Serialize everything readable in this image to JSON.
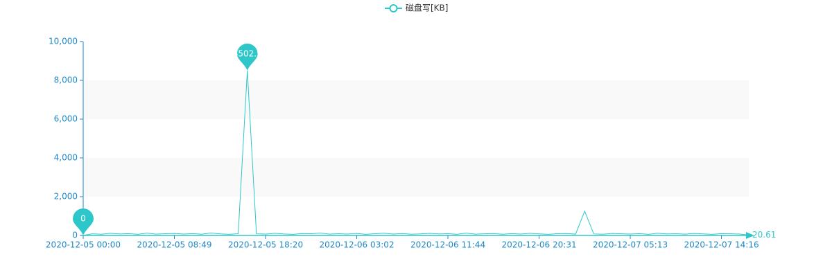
{
  "chart_data": {
    "type": "line",
    "legend": "磁盘写[KB]",
    "color": "#2ec7c9",
    "categories": [
      "2020-12-05 00:00",
      null,
      null,
      null,
      null,
      null,
      null,
      null,
      null,
      null,
      "2020-12-05 08:49",
      null,
      null,
      null,
      null,
      null,
      null,
      null,
      null,
      null,
      "2020-12-05 18:20",
      null,
      null,
      null,
      null,
      null,
      null,
      null,
      null,
      null,
      "2020-12-06 03:02",
      null,
      null,
      null,
      null,
      null,
      null,
      null,
      null,
      null,
      "2020-12-06 11:44",
      null,
      null,
      null,
      null,
      null,
      null,
      null,
      null,
      null,
      "2020-12-06 20:31",
      null,
      null,
      null,
      null,
      null,
      null,
      null,
      null,
      null,
      "2020-12-07 05:13",
      null,
      null,
      null,
      null,
      null,
      null,
      null,
      null,
      null,
      "2020-12-07 14:16",
      null,
      null,
      null
    ],
    "values": [
      0,
      85,
      62,
      110,
      74,
      93,
      58,
      120,
      67,
      88,
      102,
      71,
      95,
      64,
      130,
      79,
      56,
      91,
      8502.5,
      84,
      69,
      112,
      77,
      60,
      98,
      83,
      125,
      66,
      90,
      73,
      104,
      58,
      87,
      115,
      70,
      96,
      62,
      81,
      108,
      75,
      92,
      57,
      119,
      68,
      86,
      100,
      63,
      94,
      72,
      110,
      80,
      59,
      88,
      97,
      65,
      1250,
      78,
      61,
      103,
      85,
      70,
      92,
      58,
      116,
      74,
      89,
      66,
      101,
      79,
      60,
      95,
      83,
      71,
      20.61
    ],
    "ylim": [
      0,
      10000
    ],
    "yticks": [
      0,
      {
        "value": 2000,
        "label": "2,000"
      },
      {
        "value": 4000,
        "label": "4,000"
      },
      {
        "value": 6000,
        "label": "6,000"
      },
      {
        "value": 8000,
        "label": "8,000"
      },
      {
        "value": 10000,
        "label": "10,000"
      }
    ],
    "split_area": true,
    "mark_points": [
      "max",
      "min"
    ],
    "end_label": true
  }
}
